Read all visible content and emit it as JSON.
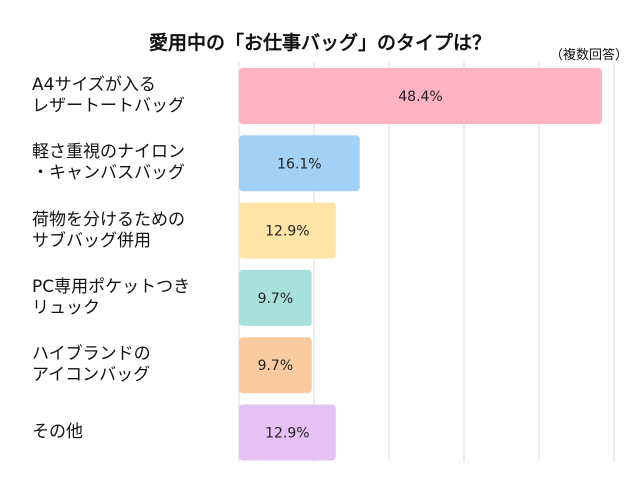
{
  "chart_data": {
    "type": "bar",
    "orientation": "horizontal",
    "title": "愛用中の「お仕事バッグ」のタイプは？",
    "subtitle": "（複数回答）",
    "categories": [
      "A4サイズが入る\nレザートートバッグ",
      "軽さ重視のナイロン\n・キャンバスバッグ",
      "荷物を分けるための\nサブバッグ併用",
      "PC専用ポケットつき\nリュック",
      "ハイブランドの\nアイコンバッグ",
      "その他"
    ],
    "values": [
      48.4,
      16.1,
      12.9,
      9.7,
      9.7,
      12.9
    ],
    "labels": [
      "48.4%",
      "16.1%",
      "12.9%",
      "9.7%",
      "9.7%",
      "12.9%"
    ],
    "colors": [
      "#FFB3C1",
      "#A3D1F5",
      "#FFE4A8",
      "#A8E0DE",
      "#FACB9E",
      "#E6C1F5"
    ],
    "xlim": [
      0,
      50
    ],
    "grid": true
  }
}
